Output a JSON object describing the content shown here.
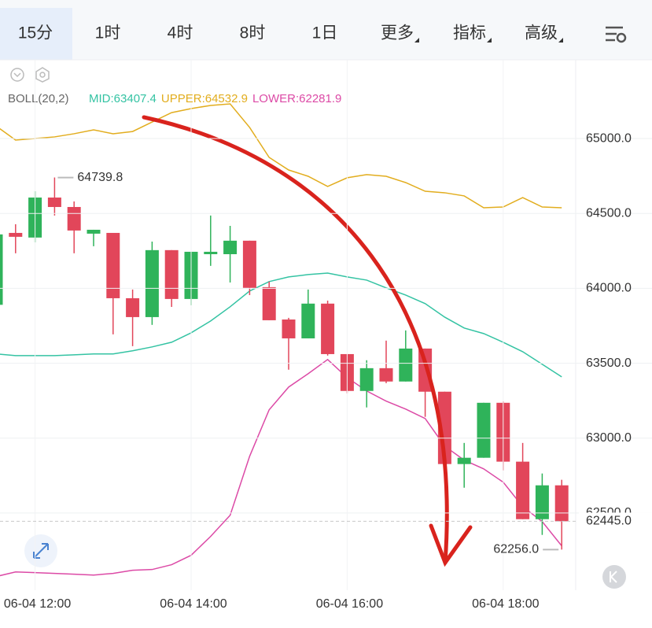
{
  "tabs": [
    "15分",
    "1时",
    "4时",
    "8时",
    "1日",
    "更多",
    "指标",
    "高级"
  ],
  "chart_data": {
    "type": "candlestick",
    "legend_title": "BOLL(20,2)",
    "categories": [
      null,
      null,
      "06-04 12:00",
      null,
      null,
      null,
      null,
      null,
      null,
      null,
      "06-04 14:00",
      null,
      null,
      null,
      null,
      null,
      null,
      null,
      "06-04 16:00",
      null,
      null,
      null,
      null,
      null,
      null,
      null,
      "06-04 18:00",
      null,
      null,
      null
    ],
    "open": [
      63890,
      64370,
      64339,
      64606,
      64543,
      64365,
      64370,
      63934,
      63808,
      64255,
      63929,
      64228,
      64228,
      64318,
      64008,
      63792,
      63666,
      63898,
      63561,
      63315,
      63467,
      63378,
      63598,
      63310,
      62827,
      62869,
      63236,
      62843,
      62459,
      62685
    ],
    "high": [
      64380,
      64428,
      64648,
      64740,
      64580,
      64391,
      64370,
      63992,
      64312,
      64255,
      64244,
      64486,
      64417,
      64318,
      64045,
      63803,
      63992,
      63918,
      63561,
      63520,
      63651,
      63719,
      63598,
      63310,
      62968,
      63236,
      63246,
      62968,
      62764,
      62722
    ],
    "low": [
      63870,
      64234,
      64307,
      64486,
      64234,
      64281,
      63693,
      63614,
      63756,
      63876,
      63887,
      64150,
      64039,
      63955,
      63787,
      63457,
      63666,
      63551,
      63299,
      63205,
      63367,
      63378,
      63142,
      62758,
      62669,
      62869,
      62785,
      62459,
      62354,
      62256
    ],
    "close": [
      64360,
      64344,
      64606,
      64543,
      64386,
      64391,
      63934,
      63808,
      64255,
      63929,
      64244,
      64244,
      64318,
      64003,
      63787,
      63666,
      63898,
      63561,
      63315,
      63467,
      63378,
      63598,
      63310,
      62827,
      62869,
      63236,
      62843,
      62459,
      62685,
      62445
    ],
    "up_color": "#2fb35a",
    "down_color": "#e2465a",
    "bands": [
      {
        "label": "MID:63407.4",
        "color": "#34c3a3",
        "values": [
          63562,
          63551,
          63551,
          63551,
          63556,
          63562,
          63562,
          63583,
          63609,
          63640,
          63703,
          63782,
          63877,
          63982,
          64045,
          64076,
          64092,
          64102,
          64076,
          64055,
          64003,
          63955,
          63898,
          63808,
          63735,
          63698,
          63640,
          63577,
          63493,
          63409
        ]
      },
      {
        "label": "UPPER:64532.9",
        "color": "#e2ad1e",
        "values": [
          65084,
          64990,
          65000,
          65011,
          65032,
          65058,
          65032,
          65047,
          65110,
          65173,
          65200,
          65221,
          65231,
          65074,
          64874,
          64790,
          64748,
          64680,
          64738,
          64759,
          64748,
          64706,
          64648,
          64638,
          64617,
          64538,
          64543,
          64606,
          64543,
          64538
        ]
      },
      {
        "label": "LOWER:62281.9",
        "color": "#dc4aa6",
        "values": [
          62076,
          62107,
          62102,
          62097,
          62092,
          62086,
          62097,
          62118,
          62123,
          62155,
          62218,
          62344,
          62485,
          62879,
          63189,
          63341,
          63430,
          63525,
          63404,
          63315,
          63247,
          63194,
          63131,
          62947,
          62853,
          62795,
          62706,
          62543,
          62443,
          62281
        ]
      }
    ],
    "ylim": [
      61990,
      65515
    ],
    "yticks": [
      {
        "value": 65000,
        "label": "65000.0"
      },
      {
        "value": 64500,
        "label": "64500.0"
      },
      {
        "value": 64000,
        "label": "64000.0"
      },
      {
        "value": 63500,
        "label": "63500.0"
      },
      {
        "value": 63000,
        "label": "63000.0"
      },
      {
        "value": 62500,
        "label": "62500.0"
      }
    ],
    "grid": true,
    "high_marker": {
      "value": 64739.8,
      "label": "64739.8"
    },
    "low_marker": {
      "value": 62256.0,
      "label": "62256.0"
    },
    "last_price": {
      "value": 62445.0,
      "label": "62445.0"
    }
  }
}
